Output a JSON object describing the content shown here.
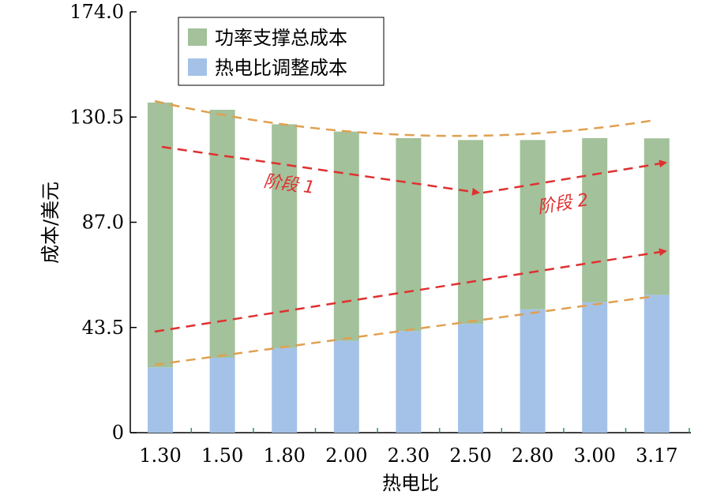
{
  "chart_data": {
    "type": "bar",
    "stacked": true,
    "xlabel": "热电比",
    "ylabel": "成本/美元",
    "ylim": [
      0,
      174.0
    ],
    "yticks": [
      "0",
      "43.5",
      "87.0",
      "130.5",
      "174.0"
    ],
    "categories": [
      "1.30",
      "1.50",
      "1.80",
      "2.00",
      "2.30",
      "2.50",
      "2.80",
      "3.00",
      "3.17"
    ],
    "series": [
      {
        "name": "热电比调整成本",
        "color": "#a4c2e8",
        "values": [
          27,
          31,
          35,
          38,
          42,
          45,
          51,
          54,
          57
        ]
      },
      {
        "name": "功率支撑总成本",
        "color": "#a3c19a",
        "values": [
          109.5,
          102.5,
          92.5,
          86.5,
          79.8,
          76.0,
          70.0,
          67.8,
          64.7
        ]
      }
    ],
    "legend_position": "top-left",
    "annotations": [
      {
        "text": "阶段 1",
        "color": "#e03030"
      },
      {
        "text": "阶段 2",
        "color": "#e03030"
      }
    ],
    "trend_line_colors": {
      "envelope": "#e0a050",
      "trend": "#e03030"
    }
  }
}
